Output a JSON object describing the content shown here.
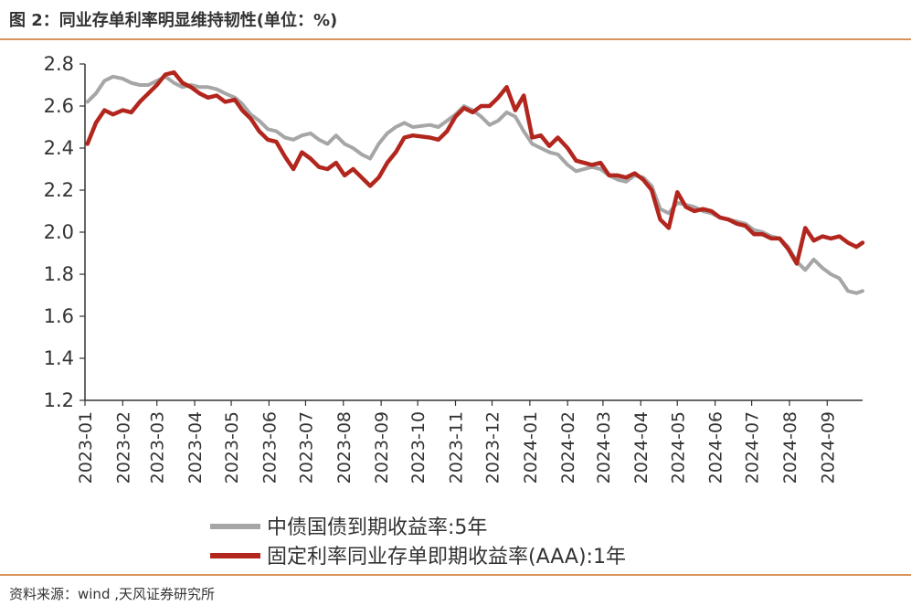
{
  "header": {
    "title": "图 2：同业存单利率明显维持韧性(单位：%)"
  },
  "footer": {
    "source": "资料来源：wind ,天风证券研究所"
  },
  "colors": {
    "accent_line": "#d9935a",
    "series_gray": "#a6a6a6",
    "series_red": "#b2261e"
  },
  "chart_data": {
    "type": "line",
    "title": "",
    "xlabel": "",
    "ylabel": "",
    "ylim": [
      1.2,
      2.8
    ],
    "yticks": [
      "2.8",
      "2.6",
      "2.4",
      "2.2",
      "2.0",
      "1.8",
      "1.6",
      "1.4",
      "1.2"
    ],
    "x_ticks": [
      "2023-01",
      "2023-02",
      "2023-03",
      "2023-04",
      "2023-05",
      "2023-06",
      "2023-07",
      "2023-08",
      "2023-09",
      "2023-10",
      "2023-11",
      "2023-12",
      "2024-01",
      "2024-02",
      "2024-03",
      "2024-04",
      "2024-05",
      "2024-06",
      "2024-07",
      "2024-08",
      "2024-09"
    ],
    "grid": false,
    "legend_position": "bottom",
    "series": [
      {
        "name": "中债国债到期收益率:5年",
        "color": "#a6a6a6",
        "points": [
          [
            "2023-01-03",
            2.62
          ],
          [
            "2023-01-10",
            2.66
          ],
          [
            "2023-01-17",
            2.72
          ],
          [
            "2023-01-24",
            2.74
          ],
          [
            "2023-02-01",
            2.73
          ],
          [
            "2023-02-08",
            2.71
          ],
          [
            "2023-02-15",
            2.7
          ],
          [
            "2023-02-22",
            2.7
          ],
          [
            "2023-03-01",
            2.72
          ],
          [
            "2023-03-08",
            2.74
          ],
          [
            "2023-03-15",
            2.71
          ],
          [
            "2023-03-22",
            2.69
          ],
          [
            "2023-03-29",
            2.7
          ],
          [
            "2023-04-05",
            2.69
          ],
          [
            "2023-04-12",
            2.69
          ],
          [
            "2023-04-19",
            2.68
          ],
          [
            "2023-04-26",
            2.66
          ],
          [
            "2023-05-04",
            2.64
          ],
          [
            "2023-05-10",
            2.61
          ],
          [
            "2023-05-17",
            2.56
          ],
          [
            "2023-05-24",
            2.53
          ],
          [
            "2023-05-31",
            2.49
          ],
          [
            "2023-06-07",
            2.48
          ],
          [
            "2023-06-14",
            2.45
          ],
          [
            "2023-06-21",
            2.44
          ],
          [
            "2023-06-28",
            2.46
          ],
          [
            "2023-07-05",
            2.47
          ],
          [
            "2023-07-12",
            2.44
          ],
          [
            "2023-07-19",
            2.42
          ],
          [
            "2023-07-26",
            2.46
          ],
          [
            "2023-08-02",
            2.42
          ],
          [
            "2023-08-09",
            2.4
          ],
          [
            "2023-08-16",
            2.37
          ],
          [
            "2023-08-23",
            2.35
          ],
          [
            "2023-08-30",
            2.42
          ],
          [
            "2023-09-06",
            2.47
          ],
          [
            "2023-09-13",
            2.5
          ],
          [
            "2023-09-20",
            2.52
          ],
          [
            "2023-09-27",
            2.5
          ],
          [
            "2023-10-11",
            2.51
          ],
          [
            "2023-10-18",
            2.5
          ],
          [
            "2023-10-25",
            2.53
          ],
          [
            "2023-11-01",
            2.56
          ],
          [
            "2023-11-08",
            2.6
          ],
          [
            "2023-11-15",
            2.58
          ],
          [
            "2023-11-22",
            2.55
          ],
          [
            "2023-11-29",
            2.51
          ],
          [
            "2023-12-06",
            2.53
          ],
          [
            "2023-12-13",
            2.57
          ],
          [
            "2023-12-20",
            2.55
          ],
          [
            "2023-12-27",
            2.48
          ],
          [
            "2024-01-03",
            2.42
          ],
          [
            "2024-01-10",
            2.4
          ],
          [
            "2024-01-17",
            2.38
          ],
          [
            "2024-01-24",
            2.37
          ],
          [
            "2024-02-01",
            2.32
          ],
          [
            "2024-02-08",
            2.29
          ],
          [
            "2024-02-21",
            2.31
          ],
          [
            "2024-02-28",
            2.3
          ],
          [
            "2024-03-06",
            2.27
          ],
          [
            "2024-03-13",
            2.25
          ],
          [
            "2024-03-20",
            2.24
          ],
          [
            "2024-03-27",
            2.27
          ],
          [
            "2024-04-03",
            2.26
          ],
          [
            "2024-04-10",
            2.22
          ],
          [
            "2024-04-17",
            2.11
          ],
          [
            "2024-04-24",
            2.09
          ],
          [
            "2024-05-01",
            2.14
          ],
          [
            "2024-05-08",
            2.13
          ],
          [
            "2024-05-15",
            2.12
          ],
          [
            "2024-05-22",
            2.1
          ],
          [
            "2024-05-29",
            2.09
          ],
          [
            "2024-06-05",
            2.07
          ],
          [
            "2024-06-12",
            2.06
          ],
          [
            "2024-06-19",
            2.05
          ],
          [
            "2024-06-26",
            2.04
          ],
          [
            "2024-07-03",
            2.01
          ],
          [
            "2024-07-10",
            2.0
          ],
          [
            "2024-07-17",
            1.98
          ],
          [
            "2024-07-24",
            1.97
          ],
          [
            "2024-07-31",
            1.93
          ],
          [
            "2024-08-07",
            1.86
          ],
          [
            "2024-08-14",
            1.82
          ],
          [
            "2024-08-21",
            1.87
          ],
          [
            "2024-08-28",
            1.83
          ],
          [
            "2024-09-04",
            1.8
          ],
          [
            "2024-09-11",
            1.78
          ],
          [
            "2024-09-18",
            1.72
          ],
          [
            "2024-09-25",
            1.71
          ],
          [
            "2024-09-30",
            1.72
          ]
        ]
      },
      {
        "name": "固定利率同业存单即期收益率(AAA):1年",
        "color": "#b2261e",
        "points": [
          [
            "2023-01-03",
            2.42
          ],
          [
            "2023-01-10",
            2.52
          ],
          [
            "2023-01-17",
            2.58
          ],
          [
            "2023-01-24",
            2.56
          ],
          [
            "2023-02-01",
            2.58
          ],
          [
            "2023-02-08",
            2.57
          ],
          [
            "2023-02-15",
            2.62
          ],
          [
            "2023-02-22",
            2.66
          ],
          [
            "2023-03-01",
            2.7
          ],
          [
            "2023-03-08",
            2.75
          ],
          [
            "2023-03-15",
            2.76
          ],
          [
            "2023-03-22",
            2.71
          ],
          [
            "2023-03-29",
            2.69
          ],
          [
            "2023-04-05",
            2.66
          ],
          [
            "2023-04-12",
            2.64
          ],
          [
            "2023-04-19",
            2.65
          ],
          [
            "2023-04-26",
            2.62
          ],
          [
            "2023-05-04",
            2.63
          ],
          [
            "2023-05-10",
            2.58
          ],
          [
            "2023-05-17",
            2.54
          ],
          [
            "2023-05-24",
            2.48
          ],
          [
            "2023-05-31",
            2.44
          ],
          [
            "2023-06-07",
            2.43
          ],
          [
            "2023-06-14",
            2.36
          ],
          [
            "2023-06-21",
            2.3
          ],
          [
            "2023-06-28",
            2.38
          ],
          [
            "2023-07-05",
            2.35
          ],
          [
            "2023-07-12",
            2.31
          ],
          [
            "2023-07-19",
            2.3
          ],
          [
            "2023-07-26",
            2.33
          ],
          [
            "2023-08-02",
            2.27
          ],
          [
            "2023-08-09",
            2.3
          ],
          [
            "2023-08-16",
            2.26
          ],
          [
            "2023-08-23",
            2.22
          ],
          [
            "2023-08-30",
            2.26
          ],
          [
            "2023-09-06",
            2.33
          ],
          [
            "2023-09-13",
            2.38
          ],
          [
            "2023-09-20",
            2.45
          ],
          [
            "2023-09-27",
            2.46
          ],
          [
            "2023-10-11",
            2.45
          ],
          [
            "2023-10-18",
            2.44
          ],
          [
            "2023-10-25",
            2.48
          ],
          [
            "2023-11-01",
            2.55
          ],
          [
            "2023-11-08",
            2.59
          ],
          [
            "2023-11-15",
            2.57
          ],
          [
            "2023-11-22",
            2.6
          ],
          [
            "2023-11-29",
            2.6
          ],
          [
            "2023-12-06",
            2.64
          ],
          [
            "2023-12-13",
            2.69
          ],
          [
            "2023-12-20",
            2.58
          ],
          [
            "2023-12-27",
            2.65
          ],
          [
            "2024-01-03",
            2.45
          ],
          [
            "2024-01-10",
            2.46
          ],
          [
            "2024-01-17",
            2.41
          ],
          [
            "2024-01-24",
            2.45
          ],
          [
            "2024-02-01",
            2.4
          ],
          [
            "2024-02-08",
            2.34
          ],
          [
            "2024-02-21",
            2.32
          ],
          [
            "2024-02-28",
            2.33
          ],
          [
            "2024-03-06",
            2.27
          ],
          [
            "2024-03-13",
            2.27
          ],
          [
            "2024-03-20",
            2.26
          ],
          [
            "2024-03-27",
            2.28
          ],
          [
            "2024-04-03",
            2.25
          ],
          [
            "2024-04-10",
            2.2
          ],
          [
            "2024-04-17",
            2.06
          ],
          [
            "2024-04-24",
            2.02
          ],
          [
            "2024-05-01",
            2.19
          ],
          [
            "2024-05-08",
            2.12
          ],
          [
            "2024-05-15",
            2.1
          ],
          [
            "2024-05-22",
            2.11
          ],
          [
            "2024-05-29",
            2.1
          ],
          [
            "2024-06-05",
            2.07
          ],
          [
            "2024-06-12",
            2.06
          ],
          [
            "2024-06-19",
            2.04
          ],
          [
            "2024-06-26",
            2.03
          ],
          [
            "2024-07-03",
            1.99
          ],
          [
            "2024-07-10",
            1.99
          ],
          [
            "2024-07-17",
            1.97
          ],
          [
            "2024-07-24",
            1.97
          ],
          [
            "2024-07-31",
            1.92
          ],
          [
            "2024-08-07",
            1.85
          ],
          [
            "2024-08-14",
            2.02
          ],
          [
            "2024-08-21",
            1.96
          ],
          [
            "2024-08-28",
            1.98
          ],
          [
            "2024-09-04",
            1.97
          ],
          [
            "2024-09-11",
            1.98
          ],
          [
            "2024-09-18",
            1.95
          ],
          [
            "2024-09-25",
            1.93
          ],
          [
            "2024-09-30",
            1.95
          ]
        ]
      }
    ]
  }
}
